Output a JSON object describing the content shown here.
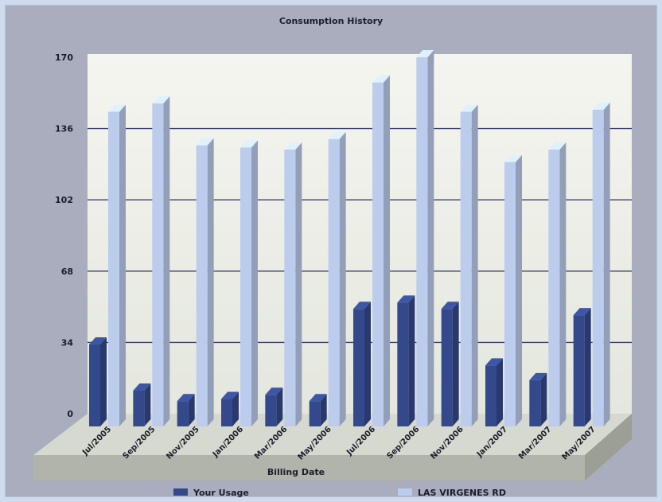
{
  "chart_data": {
    "type": "bar",
    "title": "Consumption History",
    "xlabel": "Billing Date",
    "ylabel": "",
    "ylim": [
      0,
      170
    ],
    "y_ticks": [
      "170",
      "136",
      "102",
      "68",
      "34",
      "0"
    ],
    "y_tick_values": [
      170,
      136,
      102,
      68,
      34,
      0
    ],
    "categories": [
      "Jul/2005",
      "Sep/2005",
      "Nov/2005",
      "Jan/2006",
      "Mar/2006",
      "May/2006",
      "Jul/2006",
      "Sep/2006",
      "Nov/2006",
      "Jan/2007",
      "Mar/2007",
      "May/2007"
    ],
    "series": [
      {
        "name": "Your Usage",
        "color": "#34498c",
        "values": [
          33,
          11,
          6,
          7,
          9,
          6,
          50,
          53,
          50,
          23,
          16,
          47
        ]
      },
      {
        "name": "LAS VIRGENES RD",
        "color": "#bcccec",
        "values": [
          144,
          148,
          128,
          127,
          126,
          131,
          158,
          170,
          144,
          120,
          126,
          145
        ]
      }
    ],
    "grid": true,
    "legend_position": "bottom",
    "style": "3d"
  }
}
